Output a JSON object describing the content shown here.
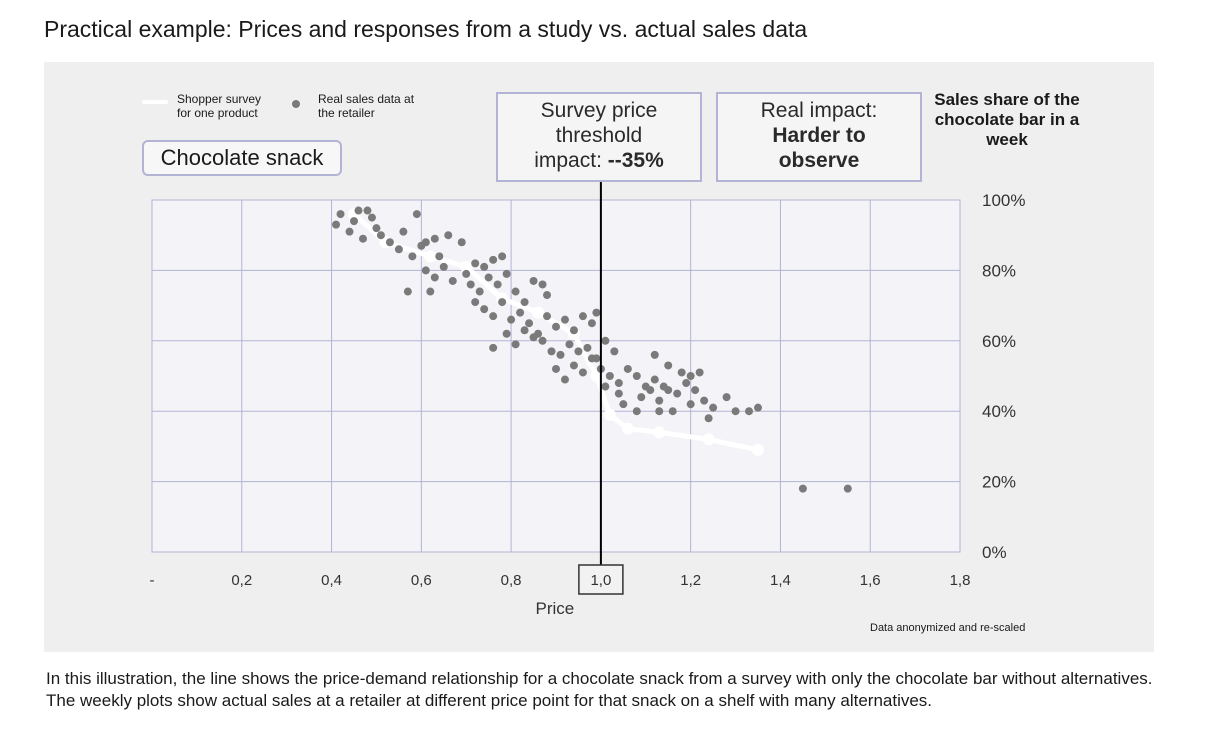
{
  "title": "Practical example: Prices and responses from a study vs. actual sales data",
  "legend": {
    "line_label": "Shopper survey for one product",
    "dots_label": "Real sales data at the retailer"
  },
  "product_label": "Chocolate snack",
  "callouts": {
    "survey_line1": "Survey price",
    "survey_line2": "threshold",
    "survey_line3a": "impact: ",
    "survey_line3b": "--35%",
    "real_line1": "Real impact:",
    "real_line2": "Harder to",
    "real_line3": "observe"
  },
  "share_title": "Sales share of the chocolate bar in a week",
  "note": "Data anonymized and re-scaled",
  "caption": "In this illustration, the line shows the price-demand relationship for a chocolate snack from a survey with only the chocolate bar without alternatives. The weekly plots show actual sales at a retailer at different price point for that snack on a shelf with many alternatives.",
  "colors": {
    "panel": "#efefef",
    "grid": "#b3b3d6",
    "survey_line": "#ffffff",
    "sales_dots": "#7a7a7a",
    "threshold_line": "#000000"
  },
  "chart_data": {
    "type": "scatter",
    "xlabel": "Price",
    "ylabel": "",
    "x_ticks": [
      "-",
      "0,2",
      "0,4",
      "0,6",
      "0,8",
      "1,0",
      "1,2",
      "1,4",
      "1,6",
      "1,8"
    ],
    "y_ticks": [
      "100%",
      "80%",
      "60%",
      "40%",
      "20%",
      "0%"
    ],
    "xlim": [
      0.0,
      1.8
    ],
    "ylim": [
      0,
      100
    ],
    "highlight_x_tick": "1,0",
    "threshold_x": 1.0,
    "grid": true,
    "legend_position": "top-left",
    "series": [
      {
        "name": "Shopper survey for one product",
        "type": "line",
        "points": [
          [
            0.45,
            96
          ],
          [
            0.52,
            88
          ],
          [
            0.62,
            84
          ],
          [
            0.7,
            81
          ],
          [
            0.78,
            72
          ],
          [
            0.86,
            68
          ],
          [
            0.94,
            62
          ],
          [
            0.99,
            50
          ],
          [
            1.02,
            39
          ],
          [
            1.06,
            35
          ],
          [
            1.13,
            34
          ],
          [
            1.24,
            32
          ],
          [
            1.35,
            29
          ]
        ]
      },
      {
        "name": "Real sales data at the retailer",
        "type": "scatter",
        "points": [
          [
            0.41,
            93
          ],
          [
            0.42,
            96
          ],
          [
            0.44,
            91
          ],
          [
            0.45,
            94
          ],
          [
            0.46,
            97
          ],
          [
            0.48,
            97
          ],
          [
            0.47,
            89
          ],
          [
            0.49,
            95
          ],
          [
            0.5,
            92
          ],
          [
            0.51,
            90
          ],
          [
            0.53,
            88
          ],
          [
            0.55,
            86
          ],
          [
            0.56,
            91
          ],
          [
            0.58,
            84
          ],
          [
            0.6,
            87
          ],
          [
            0.59,
            96
          ],
          [
            0.61,
            88
          ],
          [
            0.63,
            89
          ],
          [
            0.64,
            84
          ],
          [
            0.66,
            90
          ],
          [
            0.69,
            88
          ],
          [
            0.61,
            80
          ],
          [
            0.63,
            78
          ],
          [
            0.65,
            81
          ],
          [
            0.57,
            74
          ],
          [
            0.62,
            74
          ],
          [
            0.67,
            77
          ],
          [
            0.7,
            79
          ],
          [
            0.71,
            76
          ],
          [
            0.72,
            82
          ],
          [
            0.74,
            81
          ],
          [
            0.76,
            83
          ],
          [
            0.78,
            84
          ],
          [
            0.73,
            74
          ],
          [
            0.75,
            78
          ],
          [
            0.77,
            76
          ],
          [
            0.79,
            79
          ],
          [
            0.81,
            74
          ],
          [
            0.83,
            71
          ],
          [
            0.85,
            77
          ],
          [
            0.87,
            76
          ],
          [
            0.88,
            73
          ],
          [
            0.72,
            71
          ],
          [
            0.74,
            69
          ],
          [
            0.76,
            67
          ],
          [
            0.78,
            71
          ],
          [
            0.8,
            66
          ],
          [
            0.82,
            68
          ],
          [
            0.84,
            65
          ],
          [
            0.86,
            62
          ],
          [
            0.88,
            67
          ],
          [
            0.9,
            64
          ],
          [
            0.92,
            66
          ],
          [
            0.94,
            63
          ],
          [
            0.96,
            67
          ],
          [
            0.98,
            65
          ],
          [
            0.76,
            58
          ],
          [
            0.79,
            62
          ],
          [
            0.81,
            59
          ],
          [
            0.83,
            63
          ],
          [
            0.85,
            61
          ],
          [
            0.87,
            60
          ],
          [
            0.89,
            57
          ],
          [
            0.91,
            56
          ],
          [
            0.93,
            59
          ],
          [
            0.95,
            57
          ],
          [
            0.97,
            58
          ],
          [
            0.99,
            55
          ],
          [
            1.01,
            60
          ],
          [
            1.03,
            57
          ],
          [
            0.9,
            52
          ],
          [
            0.92,
            49
          ],
          [
            0.94,
            53
          ],
          [
            0.96,
            51
          ],
          [
            0.98,
            55
          ],
          [
            1.0,
            52
          ],
          [
            1.02,
            50
          ],
          [
            1.04,
            48
          ],
          [
            1.06,
            52
          ],
          [
            1.08,
            50
          ],
          [
            1.1,
            47
          ],
          [
            1.12,
            49
          ],
          [
            1.14,
            47
          ],
          [
            1.01,
            47
          ],
          [
            1.04,
            45
          ],
          [
            1.09,
            44
          ],
          [
            1.11,
            46
          ],
          [
            1.13,
            43
          ],
          [
            1.15,
            46
          ],
          [
            1.17,
            45
          ],
          [
            1.19,
            48
          ],
          [
            1.21,
            46
          ],
          [
            1.23,
            43
          ],
          [
            1.25,
            41
          ],
          [
            1.28,
            44
          ],
          [
            1.05,
            42
          ],
          [
            1.08,
            40
          ],
          [
            1.12,
            56
          ],
          [
            1.15,
            53
          ],
          [
            1.18,
            51
          ],
          [
            1.2,
            50
          ],
          [
            1.22,
            51
          ],
          [
            1.13,
            40
          ],
          [
            1.16,
            40
          ],
          [
            1.2,
            42
          ],
          [
            1.24,
            38
          ],
          [
            1.3,
            40
          ],
          [
            1.33,
            40
          ],
          [
            1.35,
            41
          ],
          [
            1.45,
            18
          ],
          [
            1.55,
            18
          ],
          [
            0.99,
            68
          ]
        ]
      }
    ]
  }
}
